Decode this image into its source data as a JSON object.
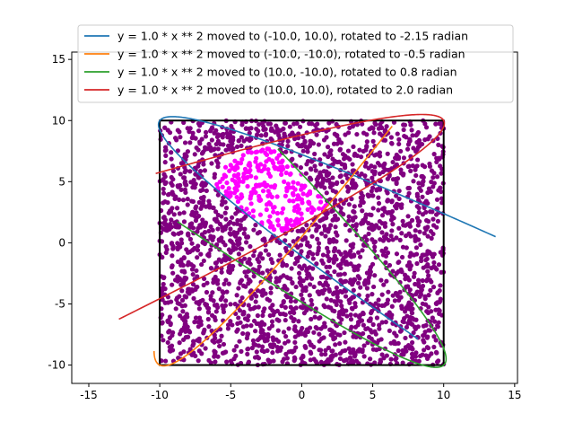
{
  "chart_data": {
    "type": "scatter",
    "title": "",
    "xlabel": "",
    "ylabel": "",
    "xlim": [
      -16.2,
      15.2
    ],
    "ylim": [
      -11.5,
      15.6
    ],
    "xticks": [
      -15,
      -10,
      -5,
      0,
      5,
      10,
      15
    ],
    "yticks": [
      -10,
      -5,
      0,
      5,
      10,
      15
    ],
    "grid": false,
    "legend_position": "top",
    "square": {
      "x": [
        -10,
        10
      ],
      "y": [
        -10,
        10
      ],
      "color": "#000000"
    },
    "scatter": {
      "count": 2600,
      "region": {
        "x": [
          -10,
          10
        ],
        "y": [
          -10,
          10
        ]
      },
      "base_color": "#800080",
      "highlight_color": "#ff00ff",
      "highlight_region": "inside all four parabolas"
    },
    "series": [
      {
        "name": "y = 1.0 * x ** 2 moved to (-10.0, 10.0), rotated to -2.15 radian",
        "a": 1.0,
        "h": -10.0,
        "k": 10.0,
        "theta": -2.15,
        "u_range": [
          -5.0,
          5.0
        ],
        "color": "#1f77b4"
      },
      {
        "name": "y = 1.0 * x ** 2 moved to (-10.0, -10.0), rotated to -0.5 radian",
        "a": 1.0,
        "h": -10.0,
        "k": -10.0,
        "theta": -0.5,
        "u_range": [
          -0.9,
          5.0
        ],
        "color": "#ff7f0e"
      },
      {
        "name": "y = 1.0 * x ** 2 moved to (10.0, -10.0), rotated to 0.8 radian",
        "a": 1.0,
        "h": 10.0,
        "k": -10.0,
        "theta": 0.8,
        "u_range": [
          -4.65,
          4.55
        ],
        "color": "#2ca02c"
      },
      {
        "name": "y = 1.0 * x ** 2 moved to (10.0, 10.0), rotated to 2.0 radian",
        "a": 1.0,
        "h": 10.0,
        "k": 10.0,
        "theta": 2.0,
        "u_range": [
          -5.25,
          4.5
        ],
        "color": "#d62728"
      }
    ]
  }
}
